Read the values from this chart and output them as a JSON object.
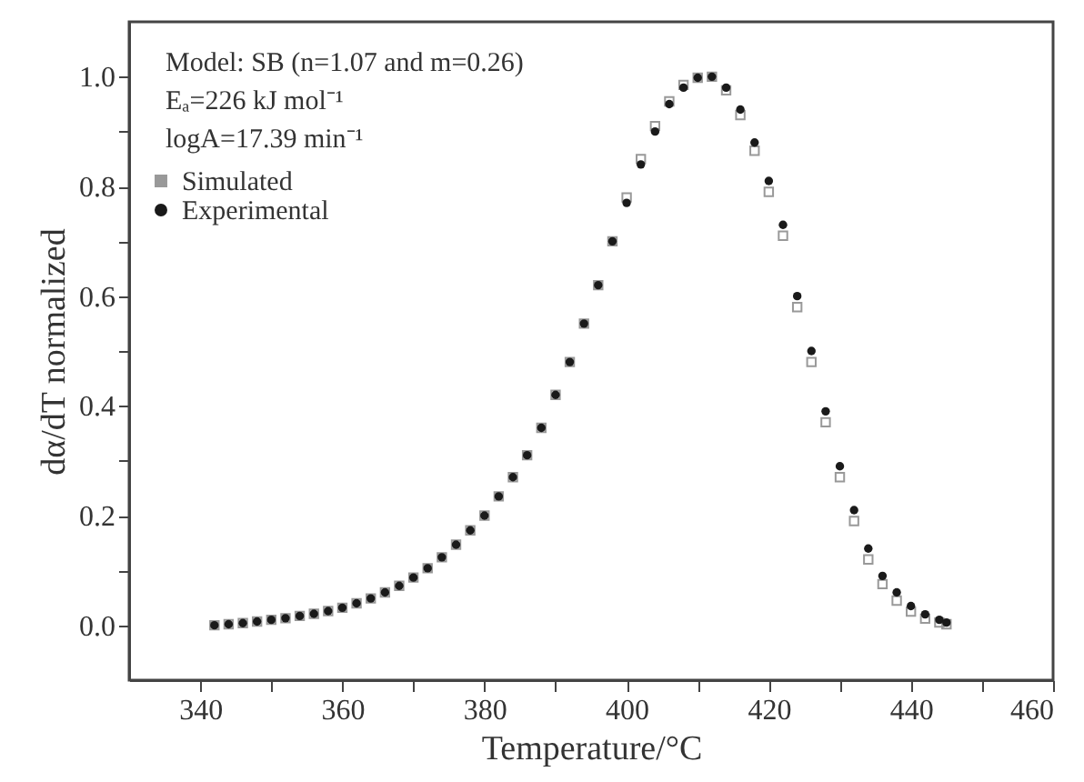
{
  "chart_data": {
    "type": "scatter",
    "xlabel": "Temperature/°C",
    "ylabel": "dα/dT normalized",
    "annotations": [
      "Model: SB (n=1.07 and m=0.26)",
      "Eₐ=226  kJ mol⁻¹",
      "logA=17.39 min⁻¹"
    ],
    "xlim": [
      330,
      460
    ],
    "xticks": [
      340,
      {
        "value": 350,
        "label": null
      },
      360,
      {
        "value": 370,
        "label": null
      },
      380,
      {
        "value": 390,
        "label": null
      },
      400,
      {
        "value": 410,
        "label": null
      },
      420,
      {
        "value": 430,
        "label": null
      },
      440,
      {
        "value": 450,
        "label": null
      },
      460
    ],
    "ylim": [
      -0.1,
      1.1
    ],
    "yticks": [
      {
        "value": 0,
        "label": "0.0"
      },
      {
        "value": 0.1,
        "label": null
      },
      {
        "value": 0.2,
        "label": "0.2"
      },
      {
        "value": 0.3,
        "label": null
      },
      {
        "value": 0.4,
        "label": "0.4"
      },
      {
        "value": 0.5,
        "label": null
      },
      {
        "value": 0.6,
        "label": "0.6"
      },
      {
        "value": 0.7,
        "label": null
      },
      {
        "value": 0.8,
        "label": "0.8"
      },
      {
        "value": 0.9,
        "label": null
      },
      {
        "value": 1.0,
        "label": "1.0"
      }
    ],
    "grid": false,
    "legend": "top left",
    "x": [
      342,
      344,
      346,
      348,
      350,
      352,
      354,
      356,
      358,
      360,
      362,
      364,
      366,
      368,
      370,
      372,
      374,
      376,
      378,
      380,
      382,
      384,
      386,
      388,
      390,
      392,
      394,
      396,
      398,
      400,
      402,
      404,
      406,
      408,
      410,
      412,
      414,
      416,
      418,
      420,
      422,
      424,
      426,
      428,
      430,
      432,
      434,
      436,
      438,
      440,
      442,
      444,
      445
    ],
    "series": [
      {
        "name": "Simulated",
        "color": "#999999",
        "marker": "square",
        "values": [
          0.0,
          0.002,
          0.004,
          0.007,
          0.01,
          0.013,
          0.017,
          0.021,
          0.026,
          0.032,
          0.04,
          0.049,
          0.06,
          0.072,
          0.087,
          0.104,
          0.124,
          0.147,
          0.173,
          0.2,
          0.235,
          0.27,
          0.31,
          0.36,
          0.42,
          0.48,
          0.55,
          0.62,
          0.7,
          0.78,
          0.85,
          0.91,
          0.955,
          0.985,
          0.998,
          1.0,
          0.975,
          0.93,
          0.865,
          0.79,
          0.71,
          0.58,
          0.48,
          0.37,
          0.27,
          0.19,
          0.12,
          0.075,
          0.045,
          0.025,
          0.012,
          0.005,
          0.002
        ]
      },
      {
        "name": "Experimental",
        "color": "#1a1a1a",
        "marker": "circle",
        "values": [
          0.0,
          0.002,
          0.004,
          0.007,
          0.01,
          0.013,
          0.017,
          0.021,
          0.026,
          0.032,
          0.04,
          0.049,
          0.06,
          0.072,
          0.087,
          0.104,
          0.124,
          0.147,
          0.173,
          0.2,
          0.235,
          0.27,
          0.31,
          0.36,
          0.42,
          0.48,
          0.55,
          0.62,
          0.7,
          0.77,
          0.84,
          0.9,
          0.95,
          0.98,
          0.998,
          1.0,
          0.98,
          0.94,
          0.88,
          0.81,
          0.73,
          0.6,
          0.5,
          0.39,
          0.29,
          0.21,
          0.14,
          0.09,
          0.06,
          0.035,
          0.02,
          0.01,
          0.005
        ]
      }
    ]
  }
}
